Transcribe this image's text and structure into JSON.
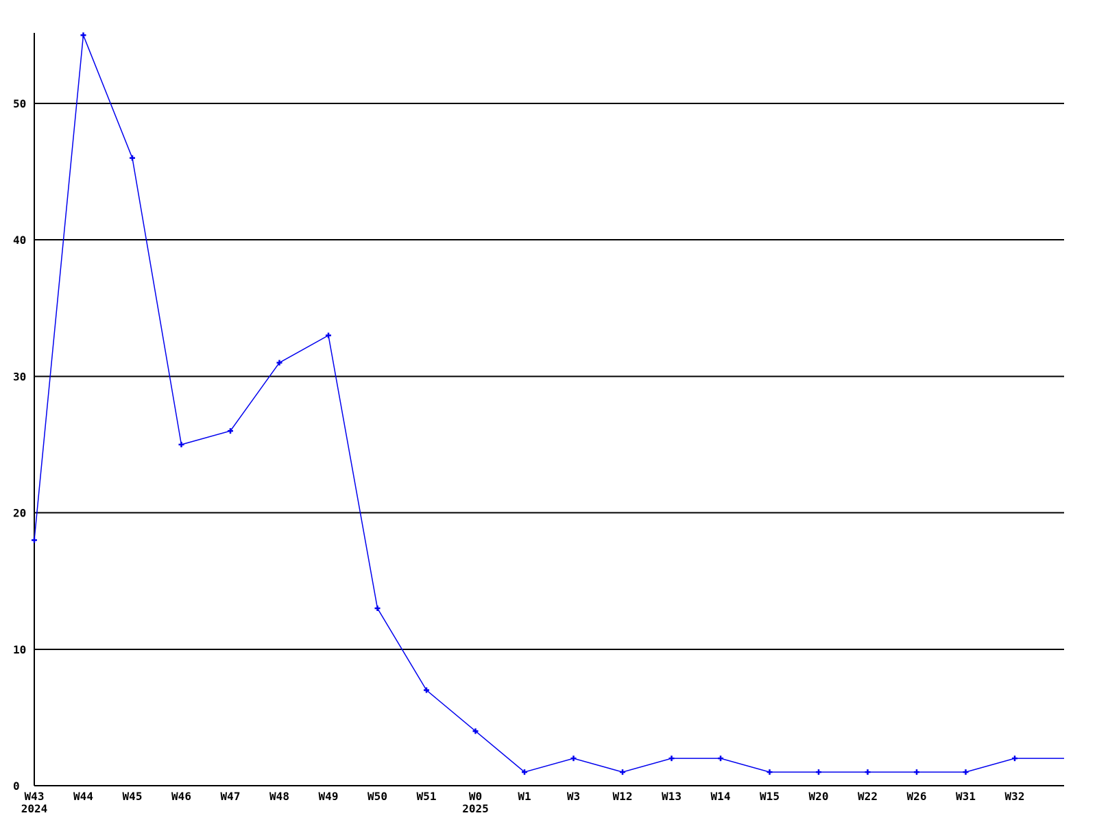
{
  "chart_data": {
    "type": "line",
    "title": "",
    "xlabel": "",
    "ylabel": "",
    "legend": "none",
    "grid": "horizontal-only",
    "x_labels": [
      {
        "label": "W43",
        "year": "2024"
      },
      {
        "label": "W44"
      },
      {
        "label": "W45"
      },
      {
        "label": "W46"
      },
      {
        "label": "W47"
      },
      {
        "label": "W48"
      },
      {
        "label": "W49"
      },
      {
        "label": "W50"
      },
      {
        "label": "W51"
      },
      {
        "label": "W0",
        "year": "2025"
      },
      {
        "label": "W1"
      },
      {
        "label": "W3"
      },
      {
        "label": "W12"
      },
      {
        "label": "W13"
      },
      {
        "label": "W14"
      },
      {
        "label": "W15"
      },
      {
        "label": "W20"
      },
      {
        "label": "W22"
      },
      {
        "label": "W26"
      },
      {
        "label": "W31"
      },
      {
        "label": "W32"
      }
    ],
    "values": [
      18,
      55,
      46,
      25,
      26,
      31,
      33,
      13,
      7,
      4,
      1,
      2,
      1,
      2,
      2,
      1,
      1,
      1,
      1,
      1,
      2
    ],
    "trailing_edge_value": 2,
    "y_ticks": [
      0,
      10,
      20,
      30,
      40,
      50
    ],
    "ylim": [
      0,
      55.2
    ],
    "marker": "plus",
    "line_color": "#0000ee",
    "axis_color": "#000000",
    "background_color": "#ffffff"
  }
}
